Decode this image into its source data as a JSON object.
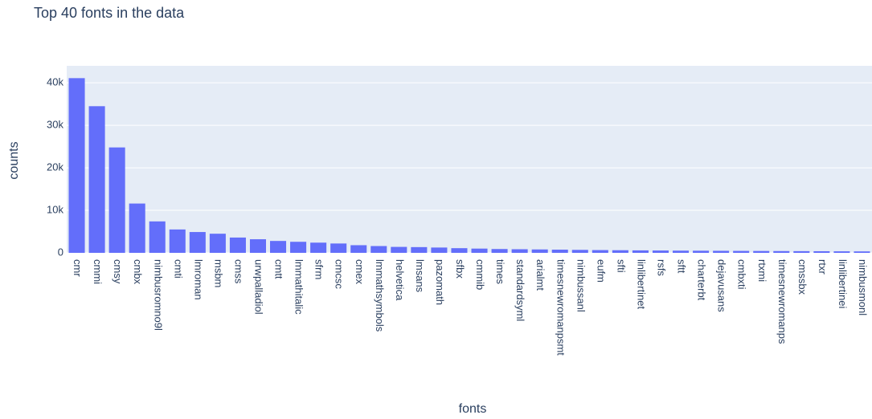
{
  "chart_data": {
    "type": "bar",
    "title": "Top 40 fonts in the data",
    "x_label": "fonts",
    "y_label": "counts",
    "categories": [
      "cmr",
      "cmmi",
      "cmsy",
      "cmbx",
      "nimbusromno9l",
      "cmti",
      "lmroman",
      "msbm",
      "cmss",
      "urwpalladiol",
      "cmtt",
      "lmmathitalic",
      "sfrm",
      "cmcsc",
      "cmex",
      "lmmathsymbols",
      "helvetica",
      "lmsans",
      "pazomath",
      "sfbx",
      "cmmib",
      "times",
      "standardsyml",
      "arialmt",
      "timesnewromanpsmt",
      "nimbussanl",
      "eufm",
      "sfti",
      "linlibertinet",
      "rsfs",
      "sftt",
      "charterbt",
      "dejavusans",
      "cmbxti",
      "rtxmi",
      "timesnewromanps",
      "cmssbx",
      "rtxr",
      "linlibertinei",
      "nimbusmonl"
    ],
    "values": [
      41100,
      34500,
      24800,
      11600,
      7400,
      5500,
      4900,
      4500,
      3600,
      3200,
      2800,
      2600,
      2400,
      2200,
      1800,
      1600,
      1400,
      1350,
      1250,
      1100,
      1000,
      900,
      850,
      800,
      750,
      700,
      650,
      620,
      580,
      550,
      520,
      500,
      480,
      460,
      440,
      420,
      400,
      380,
      360,
      340
    ],
    "color": "#636efa",
    "ylim": [
      0,
      44000
    ],
    "yticks": [
      0,
      {
        "value": 10000,
        "label": "10k"
      },
      {
        "value": 20000,
        "label": "20k"
      },
      {
        "value": 30000,
        "label": "30k"
      },
      {
        "value": 40000,
        "label": "40k"
      }
    ],
    "grid": true
  }
}
